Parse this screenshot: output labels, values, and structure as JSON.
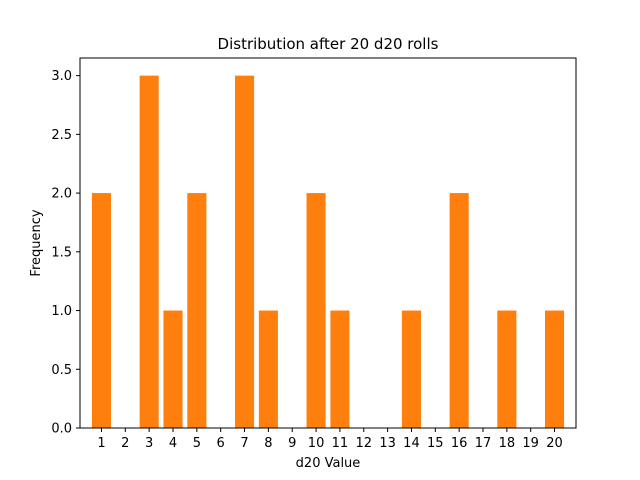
{
  "chart_data": {
    "type": "bar",
    "title": "Distribution after 20 d20 rolls",
    "xlabel": "d20 Value",
    "ylabel": "Frequency",
    "categories": [
      "1",
      "2",
      "3",
      "4",
      "5",
      "6",
      "7",
      "8",
      "9",
      "10",
      "11",
      "12",
      "13",
      "14",
      "15",
      "16",
      "17",
      "18",
      "19",
      "20"
    ],
    "values": [
      2,
      0,
      3,
      1,
      2,
      0,
      3,
      1,
      0,
      2,
      1,
      0,
      0,
      1,
      0,
      2,
      0,
      1,
      0,
      1
    ],
    "xlim": [
      0.1,
      20.9
    ],
    "ylim": [
      0,
      3.15
    ],
    "yticks": [
      0.0,
      0.5,
      1.0,
      1.5,
      2.0,
      2.5,
      3.0
    ],
    "ytick_labels": [
      "0.0",
      "0.5",
      "1.0",
      "1.5",
      "2.0",
      "2.5",
      "3.0"
    ],
    "grid": false,
    "legend": "none",
    "bar_color": "#ff7f0e"
  }
}
